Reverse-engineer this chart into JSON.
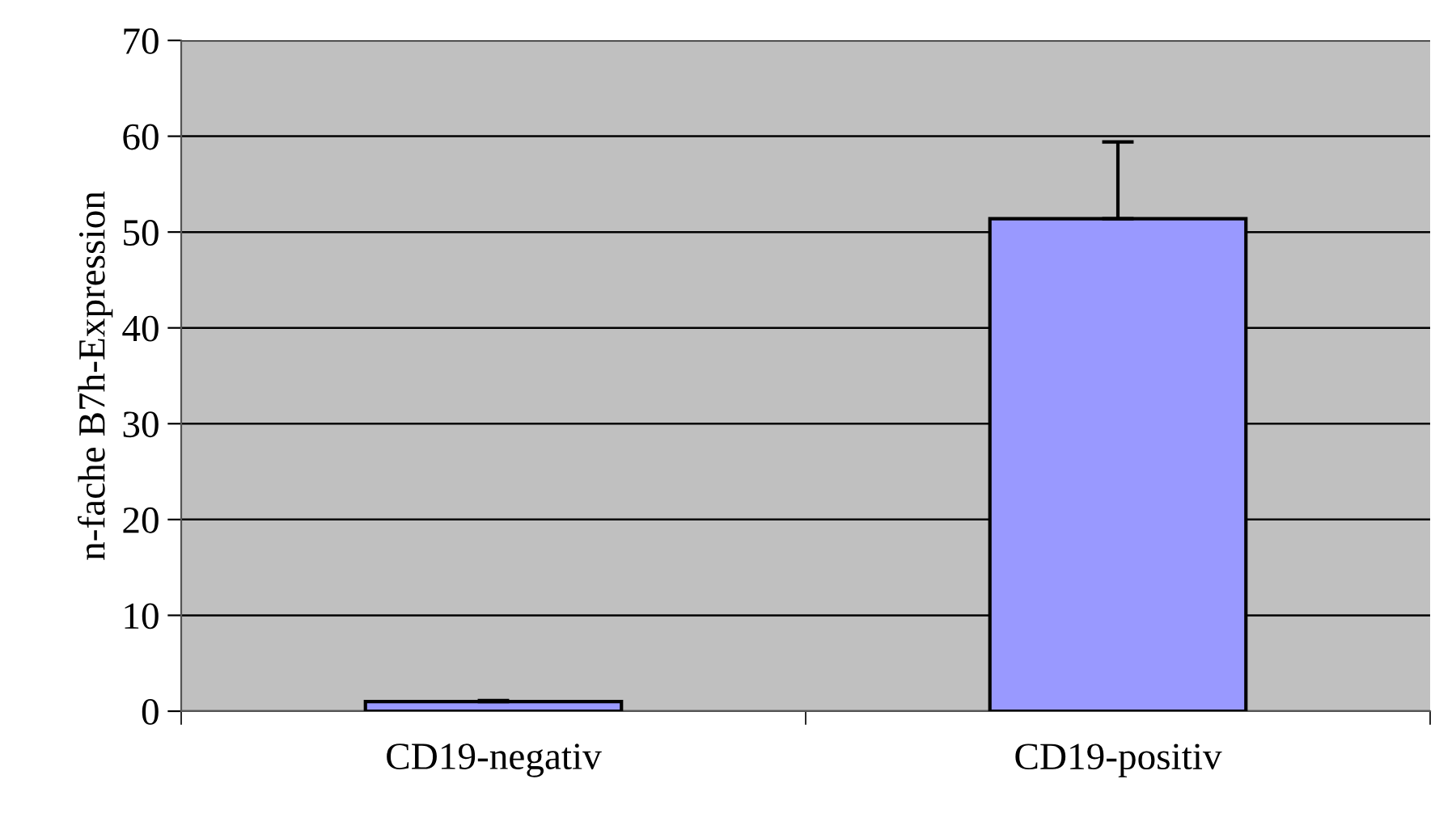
{
  "chart_data": {
    "type": "bar",
    "ylabel": "n-fache B7h-Expression",
    "categories": [
      "CD19-negativ",
      "CD19-positiv"
    ],
    "values": [
      1.0,
      51.4
    ],
    "errors": [
      [
        1.0,
        1.1
      ],
      [
        51.4,
        59.4
      ]
    ],
    "color": "#9999ff",
    "ylim": [
      0,
      70
    ],
    "yticks": [
      0,
      10,
      20,
      30,
      40,
      50,
      60,
      70
    ],
    "grid": "y"
  }
}
